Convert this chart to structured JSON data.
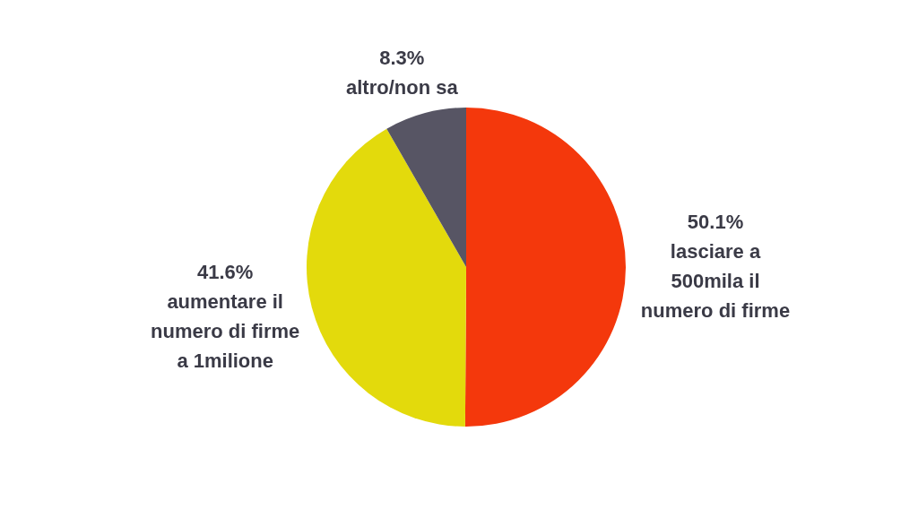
{
  "chart_data": {
    "type": "pie",
    "categories": [
      "lasciare a 500mila il numero di firme",
      "aumentare il numero di firme a 1milione",
      "altro/non sa"
    ],
    "values": [
      50.1,
      41.6,
      8.3
    ],
    "colors": [
      "#f4380c",
      "#e3da0c",
      "#575564"
    ],
    "value_labels": [
      "50.1%",
      "41.6%",
      "8.3%"
    ],
    "legend": false
  }
}
